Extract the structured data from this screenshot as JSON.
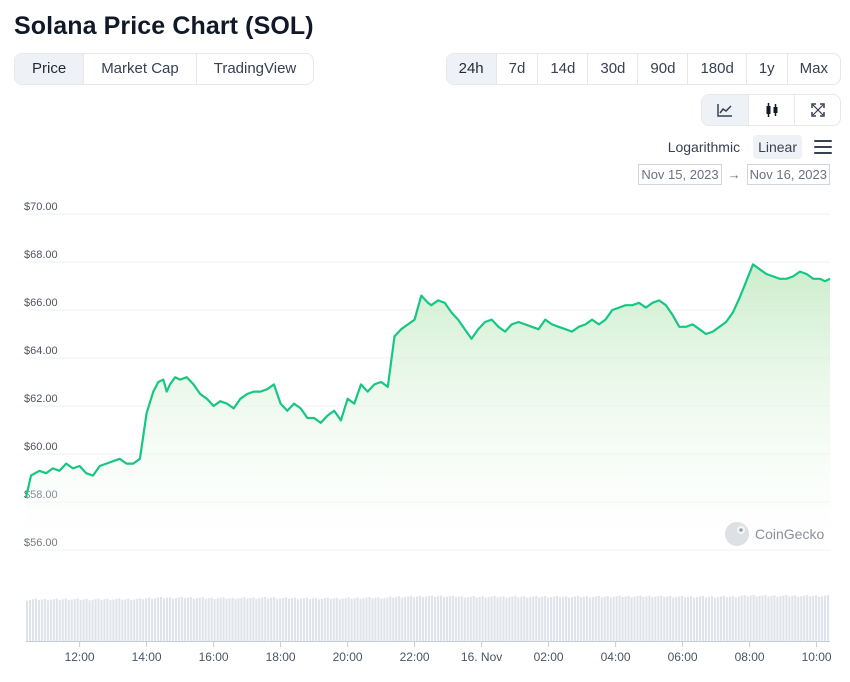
{
  "title": "Solana Price Chart (SOL)",
  "tabs": [
    {
      "label": "Price",
      "active": true
    },
    {
      "label": "Market Cap",
      "active": false
    },
    {
      "label": "TradingView",
      "active": false
    }
  ],
  "ranges": [
    {
      "label": "24h",
      "active": true
    },
    {
      "label": "7d",
      "active": false
    },
    {
      "label": "14d",
      "active": false
    },
    {
      "label": "30d",
      "active": false
    },
    {
      "label": "90d",
      "active": false
    },
    {
      "label": "180d",
      "active": false
    },
    {
      "label": "1y",
      "active": false
    },
    {
      "label": "Max",
      "active": false
    }
  ],
  "view_buttons": [
    {
      "icon": "line-chart-icon",
      "active": true
    },
    {
      "icon": "candlestick-icon",
      "active": false
    },
    {
      "icon": "fullscreen-icon",
      "active": false
    }
  ],
  "scale": {
    "logarithmic": "Logarithmic",
    "linear": "Linear",
    "active": "linear"
  },
  "date_range": {
    "from": "Nov 15, 2023",
    "arrow": "→",
    "to": "Nov 16, 2023"
  },
  "watermark": "CoinGecko",
  "colors": {
    "line": "#16c784",
    "area_top": "#c9ecc9",
    "grid": "#eef0f3",
    "volume": "#dfe3ea"
  },
  "chart_data": {
    "type": "area",
    "title": "",
    "xlabel": "",
    "ylabel": "",
    "ylim": [
      56,
      70
    ],
    "y_ticks": [
      "$70.00",
      "$68.00",
      "$66.00",
      "$64.00",
      "$62.00",
      "$60.00",
      "$58.00",
      "$56.00"
    ],
    "y_tick_values": [
      70,
      68,
      66,
      64,
      62,
      60,
      58,
      56
    ],
    "x_ticks": [
      "12:00",
      "14:00",
      "16:00",
      "18:00",
      "20:00",
      "22:00",
      "16. Nov",
      "02:00",
      "04:00",
      "06:00",
      "08:00",
      "10:00"
    ],
    "x_tick_hours": [
      12,
      14,
      16,
      18,
      20,
      22,
      24,
      26,
      28,
      30,
      32,
      34
    ],
    "xlim_hours": [
      10.4,
      34.4
    ],
    "series": [
      {
        "x": [
          10.4,
          10.55,
          10.8,
          11.0,
          11.2,
          11.4,
          11.6,
          11.8,
          12.0,
          12.2,
          12.4,
          12.6,
          12.8,
          13.0,
          13.2,
          13.4,
          13.6,
          13.8,
          14.0,
          14.2,
          14.35,
          14.5,
          14.6,
          14.7,
          14.85,
          15.0,
          15.2,
          15.4,
          15.6,
          15.8,
          16.0,
          16.2,
          16.4,
          16.6,
          16.8,
          17.0,
          17.2,
          17.4,
          17.6,
          17.8,
          18.0,
          18.2,
          18.4,
          18.6,
          18.8,
          19.0,
          19.2,
          19.4,
          19.6,
          19.8,
          20.0,
          20.2,
          20.4,
          20.6,
          20.8,
          21.0,
          21.2,
          21.4,
          21.6,
          21.8,
          22.0,
          22.2,
          22.4,
          22.5,
          22.7,
          22.9,
          23.1,
          23.3,
          23.5,
          23.7,
          23.9,
          24.1,
          24.3,
          24.5,
          24.7,
          24.9,
          25.1,
          25.3,
          25.5,
          25.7,
          25.9,
          26.1,
          26.3,
          26.5,
          26.7,
          26.9,
          27.1,
          27.3,
          27.5,
          27.7,
          27.9,
          28.1,
          28.3,
          28.5,
          28.7,
          28.9,
          29.1,
          29.3,
          29.5,
          29.7,
          29.9,
          30.1,
          30.3,
          30.5,
          30.7,
          30.9,
          31.1,
          31.3,
          31.5,
          31.7,
          31.9,
          32.1,
          32.3,
          32.5,
          32.7,
          32.9,
          33.1,
          33.3,
          33.5,
          33.7,
          33.9,
          34.1,
          34.25,
          34.4
        ],
        "values": [
          58.2,
          59.1,
          59.3,
          59.2,
          59.4,
          59.3,
          59.6,
          59.4,
          59.5,
          59.2,
          59.1,
          59.5,
          59.6,
          59.7,
          59.8,
          59.6,
          59.6,
          59.8,
          61.7,
          62.6,
          63.0,
          63.1,
          62.6,
          62.9,
          63.2,
          63.1,
          63.2,
          62.9,
          62.5,
          62.3,
          62.0,
          62.2,
          62.1,
          61.9,
          62.3,
          62.5,
          62.6,
          62.6,
          62.7,
          62.9,
          62.1,
          61.8,
          62.1,
          61.9,
          61.5,
          61.5,
          61.3,
          61.6,
          61.8,
          61.4,
          62.3,
          62.1,
          62.9,
          62.6,
          62.9,
          63.0,
          62.8,
          64.9,
          65.2,
          65.4,
          65.6,
          66.6,
          66.3,
          66.2,
          66.4,
          66.3,
          65.9,
          65.6,
          65.2,
          64.8,
          65.2,
          65.5,
          65.6,
          65.3,
          65.1,
          65.4,
          65.5,
          65.4,
          65.3,
          65.2,
          65.6,
          65.4,
          65.3,
          65.2,
          65.1,
          65.3,
          65.4,
          65.6,
          65.4,
          65.6,
          66.0,
          66.1,
          66.2,
          66.2,
          66.3,
          66.1,
          66.3,
          66.4,
          66.2,
          65.8,
          65.3,
          65.3,
          65.4,
          65.2,
          65.0,
          65.1,
          65.3,
          65.5,
          65.9,
          66.5,
          67.2,
          67.9,
          67.7,
          67.5,
          67.4,
          67.3,
          67.3,
          67.4,
          67.6,
          67.5,
          67.3,
          67.3,
          67.2,
          67.3
        ],
        "volume_level": 0.55
      }
    ]
  }
}
